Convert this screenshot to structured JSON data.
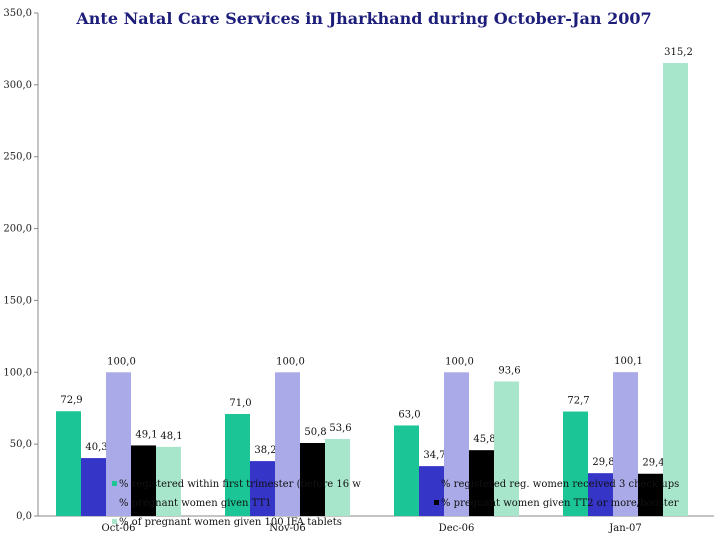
{
  "chart_data": {
    "type": "bar",
    "title": "Ante Natal Care Services in Jharkhand during October-Jan 2007",
    "xlabel": "",
    "ylabel": "",
    "ylim": [
      0,
      350
    ],
    "yticks": [
      "0,0",
      "50,0",
      "100,0",
      "150,0",
      "200,0",
      "250,0",
      "300,0",
      "350,0"
    ],
    "ytick_values": [
      0,
      50,
      100,
      150,
      200,
      250,
      300,
      350
    ],
    "categories": [
      "Oct-06",
      "Nov-06",
      "Dec-06",
      "Jan-07"
    ],
    "grid": false,
    "legend_position": "inside-bottom",
    "series": [
      {
        "name": "% registered within first trimester (before 16 w",
        "color": "#1bc596",
        "values": [
          72.9,
          71.0,
          63.0,
          72.7
        ],
        "labels": [
          "72,9",
          "71,0",
          "63,0",
          "72,7"
        ]
      },
      {
        "name": "% registered reg. women received 3 check ups",
        "color": "#3535c8",
        "values": [
          40.3,
          38.2,
          34.7,
          29.8
        ],
        "labels": [
          "40,3",
          "38,2",
          "34,7",
          "29,8"
        ]
      },
      {
        "name": "% pregnant women given TT1",
        "color": "#aaaae8",
        "values": [
          100.0,
          100.0,
          100.0,
          100.1
        ],
        "labels": [
          "100,0",
          "100,0",
          "100,0",
          "100,1"
        ]
      },
      {
        "name": "% pregnant women given TT2 or more/booster",
        "color": "#000000",
        "values": [
          49.1,
          50.8,
          45.8,
          29.4
        ],
        "labels": [
          "49,1",
          "50,8",
          "45,8",
          "29,4"
        ]
      },
      {
        "name": "% of pregnant women given 100 IFA tablets",
        "color": "#a8e6cc",
        "values": [
          48.1,
          53.6,
          93.6,
          315.2
        ],
        "labels": [
          "48,1",
          "53,6",
          "93,6",
          "315,2"
        ]
      }
    ]
  }
}
